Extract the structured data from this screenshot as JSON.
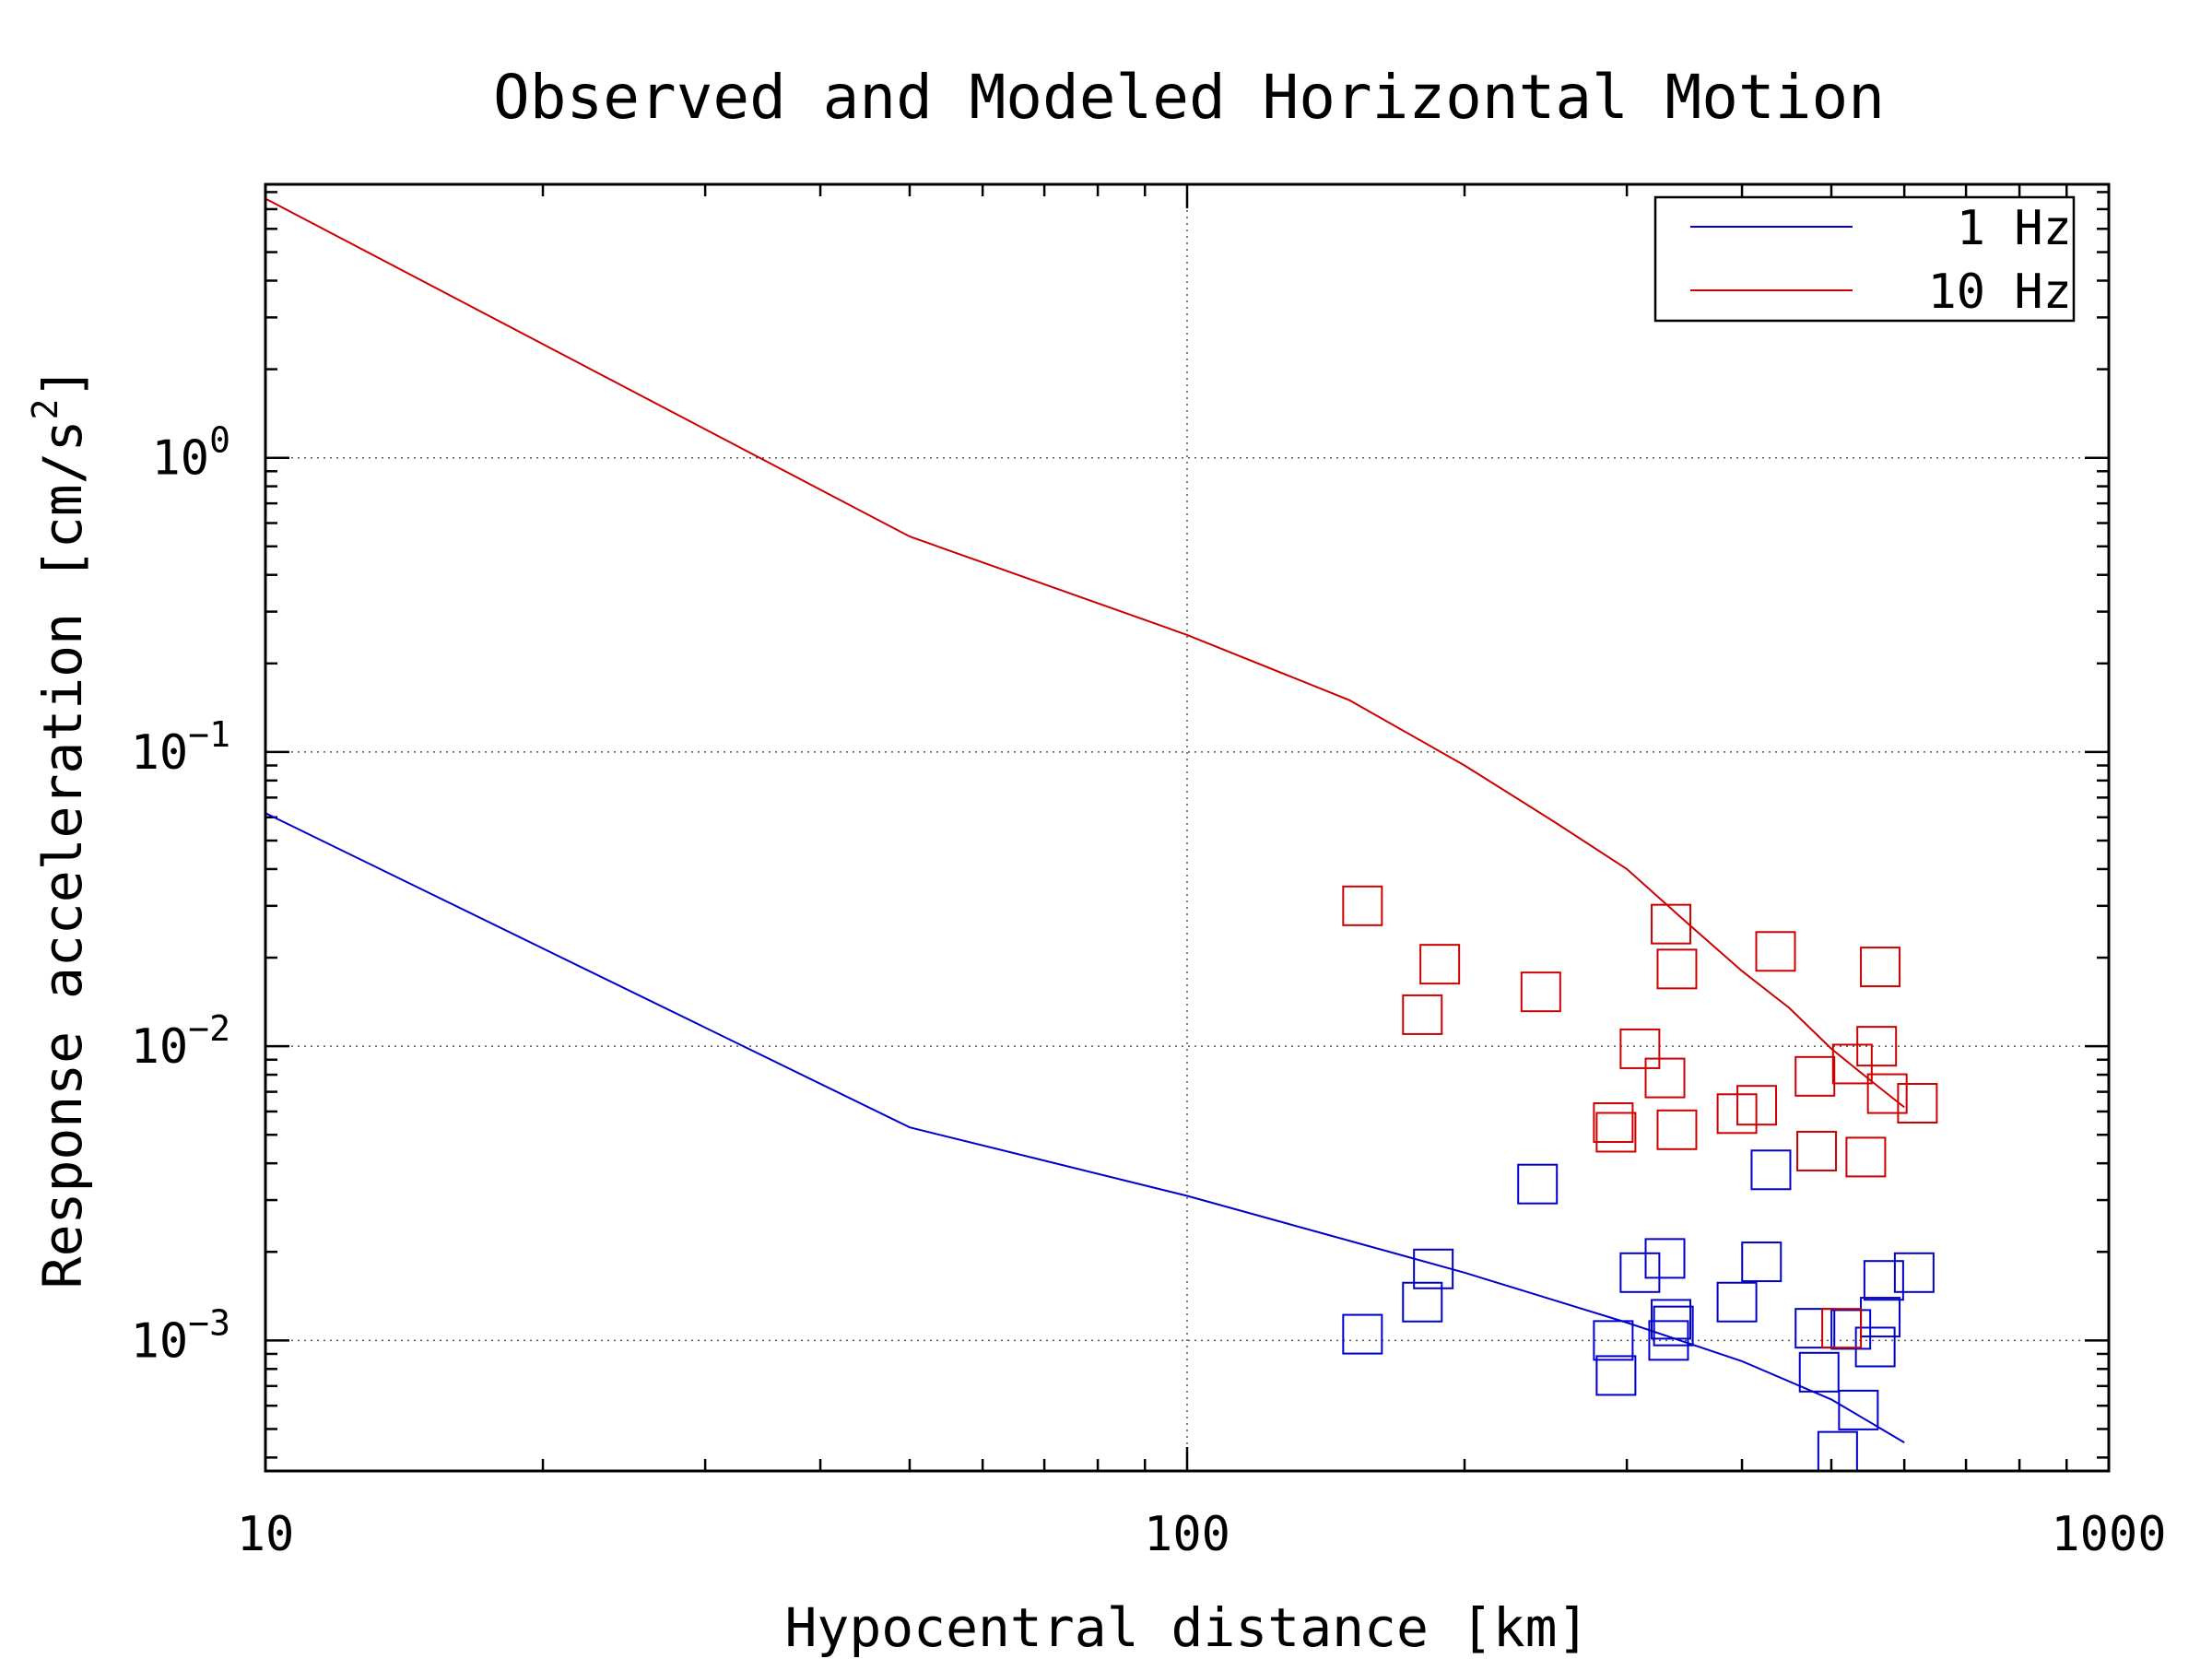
{
  "chart_data": {
    "type": "scatter",
    "title": "Observed and Modeled Horizontal Motion",
    "xlabel": "Hypocentral distance [km]",
    "ylabel_main": "Response acceleration [cm/s",
    "ylabel_sup": "2",
    "ylabel_close": "]",
    "x_scale": "log",
    "y_scale": "log",
    "xlim": [
      10,
      1000
    ],
    "ylim": [
      0.00036,
      8.5
    ],
    "x_ticks": [
      {
        "value": 10,
        "label": "10"
      },
      {
        "value": 100,
        "label": "100"
      },
      {
        "value": 1000,
        "label": "1000"
      }
    ],
    "y_ticks": [
      {
        "value": 1,
        "base": "10",
        "exp": "0"
      },
      {
        "value": 0.1,
        "base": "10",
        "exp": "−1"
      },
      {
        "value": 0.01,
        "base": "10",
        "exp": "−2"
      },
      {
        "value": 0.001,
        "base": "10",
        "exp": "−3"
      }
    ],
    "grid": "major, dotted",
    "legend_position": "top-right",
    "series": [
      {
        "name": "1 Hz",
        "color": "#0000cc",
        "model_line": [
          [
            10,
            0.062
          ],
          [
            50,
            0.0053
          ],
          [
            100,
            0.0031
          ],
          [
            200,
            0.0017
          ],
          [
            300,
            0.00115
          ],
          [
            400,
            0.00085
          ],
          [
            500,
            0.00063
          ],
          [
            600,
            0.00045
          ]
        ],
        "observed": [
          [
            155,
            0.00105
          ],
          [
            185,
            0.00175
          ],
          [
            180,
            0.00135
          ],
          [
            240,
            0.0034
          ],
          [
            290,
            0.001
          ],
          [
            292,
            0.00076
          ],
          [
            310,
            0.0017
          ],
          [
            330,
            0.0019
          ],
          [
            333,
            0.001
          ],
          [
            335,
            0.00118
          ],
          [
            337,
            0.00112
          ],
          [
            395,
            0.00135
          ],
          [
            420,
            0.00185
          ],
          [
            430,
            0.0038
          ],
          [
            480,
            0.0011
          ],
          [
            485,
            0.00078
          ],
          [
            508,
            0.00042
          ],
          [
            525,
            0.00109
          ],
          [
            535,
            0.00058
          ],
          [
            558,
            0.00095
          ],
          [
            565,
            0.0012
          ],
          [
            570,
            0.0016
          ],
          [
            615,
            0.0017
          ]
        ]
      },
      {
        "name": "10 Hz",
        "color": "#cc0000",
        "model_line": [
          [
            10,
            7.6
          ],
          [
            50,
            0.54
          ],
          [
            100,
            0.25
          ],
          [
            150,
            0.15
          ],
          [
            200,
            0.09
          ],
          [
            250,
            0.058
          ],
          [
            300,
            0.04
          ],
          [
            350,
            0.026
          ],
          [
            400,
            0.018
          ],
          [
            450,
            0.0135
          ],
          [
            500,
            0.0098
          ],
          [
            550,
            0.0077
          ],
          [
            600,
            0.0062
          ]
        ],
        "observed": [
          [
            155,
            0.03
          ],
          [
            188,
            0.019
          ],
          [
            180,
            0.0128
          ],
          [
            242,
            0.0153
          ],
          [
            290,
            0.0055
          ],
          [
            292,
            0.0051
          ],
          [
            310,
            0.0098
          ],
          [
            330,
            0.0078
          ],
          [
            335,
            0.026
          ],
          [
            340,
            0.0183
          ],
          [
            340,
            0.0052
          ],
          [
            395,
            0.0059
          ],
          [
            415,
            0.0063
          ],
          [
            435,
            0.021
          ],
          [
            480,
            0.0079
          ],
          [
            482,
            0.0044
          ],
          [
            513,
            0.0011
          ],
          [
            527,
            0.0087
          ],
          [
            545,
            0.0042
          ],
          [
            560,
            0.01
          ],
          [
            565,
            0.0186
          ],
          [
            575,
            0.0069
          ],
          [
            620,
            0.0064
          ]
        ]
      }
    ]
  }
}
